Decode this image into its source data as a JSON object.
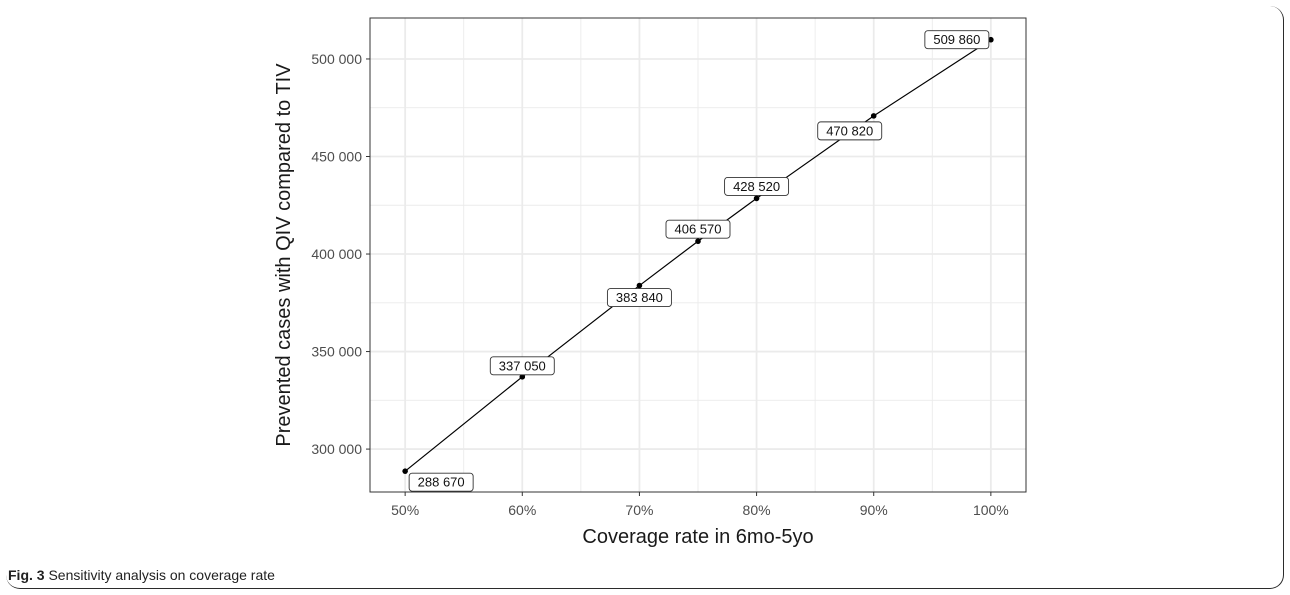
{
  "caption": {
    "label": "Fig. 3",
    "text": "Sensitivity analysis on coverage rate"
  },
  "chart_data": {
    "type": "line",
    "xlabel": "Coverage rate in 6mo-5yo",
    "ylabel": "Prevented cases with QIV compared to TIV",
    "x": [
      50,
      60,
      70,
      75,
      80,
      90,
      100
    ],
    "y": [
      288670,
      337050,
      383840,
      406570,
      428520,
      470820,
      509860
    ],
    "point_labels": [
      "288 670",
      "337 050",
      "383 840",
      "406 570",
      "428 520",
      "470 820",
      "509 860"
    ],
    "xlim": [
      47,
      103
    ],
    "ylim": [
      278000,
      521000
    ],
    "x_ticks": [
      50,
      60,
      70,
      80,
      90,
      100
    ],
    "x_tick_labels": [
      "50%",
      "60%",
      "70%",
      "80%",
      "90%",
      "100%"
    ],
    "y_ticks": [
      300000,
      350000,
      400000,
      450000,
      500000
    ],
    "y_tick_labels": [
      "300 000",
      "350 000",
      "400 000",
      "450 000",
      "500 000"
    ],
    "grid": true,
    "colors": {
      "line": "#000000",
      "grid": "#ebebeb",
      "panel_border": "#333333"
    }
  }
}
